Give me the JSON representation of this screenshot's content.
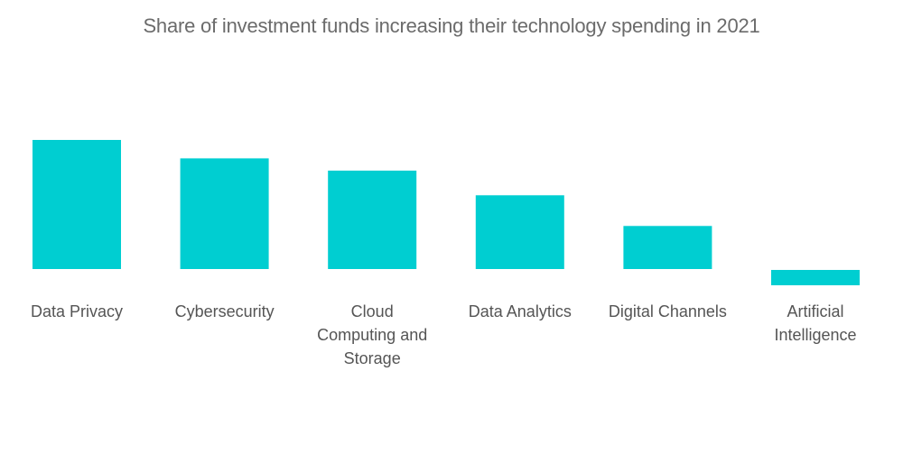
{
  "chart_data": {
    "type": "bar",
    "title": "Share of investment funds increasing their technology spending in 2021",
    "xlabel": "",
    "ylabel": "",
    "categories": [
      "Data Privacy",
      "Cybersecurity",
      "Cloud Computing and Storage",
      "Data Analytics",
      "Digital Channels",
      "Artificial Intelligence"
    ],
    "category_display": [
      "Data Privacy",
      "Cybersecurity",
      "Cloud\nComputing and\nStorage",
      "Data Analytics",
      "Digital Channels",
      "Artificial\nIntelligence"
    ],
    "values": [
      42,
      36,
      32,
      24,
      14,
      -5
    ],
    "ylim": [
      -5,
      42
    ],
    "grid": false,
    "legend": "none",
    "bar_color": "#00CED1"
  }
}
